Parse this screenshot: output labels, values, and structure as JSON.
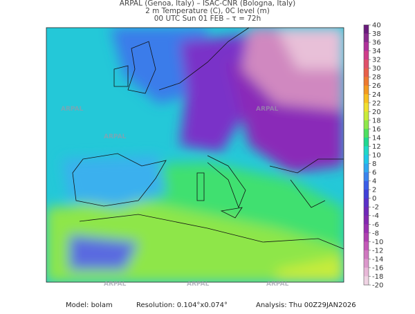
{
  "header": {
    "lines": [
      "ARPAL (Genoa, Italy)  –  ISAC-CNR (Bologna, Italy)",
      "2 m Temperature (C), 0C level (m)",
      "00 UTC Sun 01 FEB  –  τ = 72h"
    ]
  },
  "watermark": "ARPAL",
  "colorbar": {
    "ticks": [
      40,
      38,
      36,
      34,
      32,
      30,
      28,
      26,
      24,
      22,
      20,
      18,
      16,
      14,
      12,
      10,
      8,
      6,
      4,
      2,
      0,
      -2,
      -4,
      -6,
      -8,
      -10,
      -12,
      -14,
      -16,
      -18,
      -20
    ],
    "colors": [
      "#6a1b7c",
      "#8a2a8e",
      "#b0309a",
      "#d03c8a",
      "#e0506a",
      "#e8604a",
      "#ee7a30",
      "#f49a20",
      "#f8c020",
      "#f0e030",
      "#c8ec3a",
      "#8ee84a",
      "#4ee060",
      "#20d890",
      "#20d8c8",
      "#20c8e8",
      "#30a8f0",
      "#3a84ee",
      "#3a5ee8",
      "#4040d8",
      "#5a30c8",
      "#7028b8",
      "#8428b0",
      "#9a30b0",
      "#b040b0",
      "#c458b8",
      "#d078c0",
      "#dc98cc",
      "#e8b8d8",
      "#f0d4e4"
    ]
  },
  "footer": {
    "model": "Model: bolam",
    "resolution": "Resolution: 0.104°x0.074°",
    "analysis": "Analysis: Thu 00Z29JAN2026"
  }
}
